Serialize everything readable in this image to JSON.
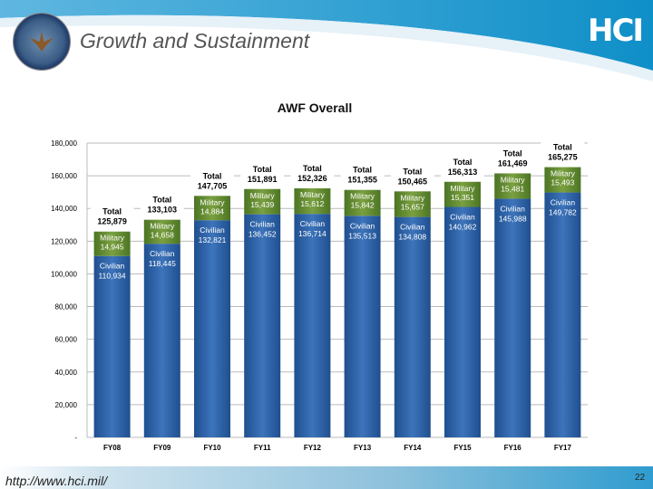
{
  "header": {
    "title": "Growth and Sustainment",
    "logo_text": "HCI",
    "seal": "Department of Defense seal",
    "colors": {
      "banner": "#1a9ad0"
    }
  },
  "footer": {
    "url": "http://www.hci.mil/",
    "page": "22"
  },
  "chart_data": {
    "type": "bar",
    "stacked": true,
    "title": "AWF Overall",
    "categories": [
      "FY08",
      "FY09",
      "FY10",
      "FY11",
      "FY12",
      "FY13",
      "FY14",
      "FY15",
      "FY16",
      "FY17"
    ],
    "series": [
      {
        "name": "Civilian",
        "color": "#2e62a8",
        "values": [
          110934,
          118445,
          132821,
          136452,
          136714,
          135513,
          134808,
          140962,
          145988,
          149782
        ]
      },
      {
        "name": "Military",
        "color": "#5e8a2c",
        "values": [
          14945,
          14658,
          14884,
          15439,
          15612,
          15842,
          15657,
          15351,
          15481,
          15493
        ]
      }
    ],
    "totals": [
      125879,
      133103,
      147705,
      151891,
      152326,
      151355,
      150465,
      156313,
      161469,
      165275
    ],
    "total_label": "Total",
    "data_labels": {
      "total": [
        "125,879",
        "133,103",
        "147,705",
        "151,891",
        "152,326",
        "151,355",
        "150,465",
        "156,313",
        "161,469",
        "165,275"
      ],
      "military": [
        "14,945",
        "14,658",
        "14,884",
        "15,439",
        "15,612",
        "15,842",
        "15,657",
        "15,351",
        "15,481",
        "15,493"
      ],
      "civilian": [
        "110,934",
        "118,445",
        "132,821",
        "136,452",
        "136,714",
        "135,513",
        "134,808",
        "140,962",
        "145,988",
        "149,782"
      ]
    },
    "ylim": [
      0,
      180000
    ],
    "yticks": [
      0,
      20000,
      40000,
      60000,
      80000,
      100000,
      120000,
      140000,
      160000,
      180000
    ],
    "ytick_labels": [
      "-",
      "20,000",
      "40,000",
      "60,000",
      "80,000",
      "100,000",
      "120,000",
      "140,000",
      "160,000",
      "180,000"
    ],
    "grid": true,
    "xlabel": "",
    "ylabel": ""
  }
}
